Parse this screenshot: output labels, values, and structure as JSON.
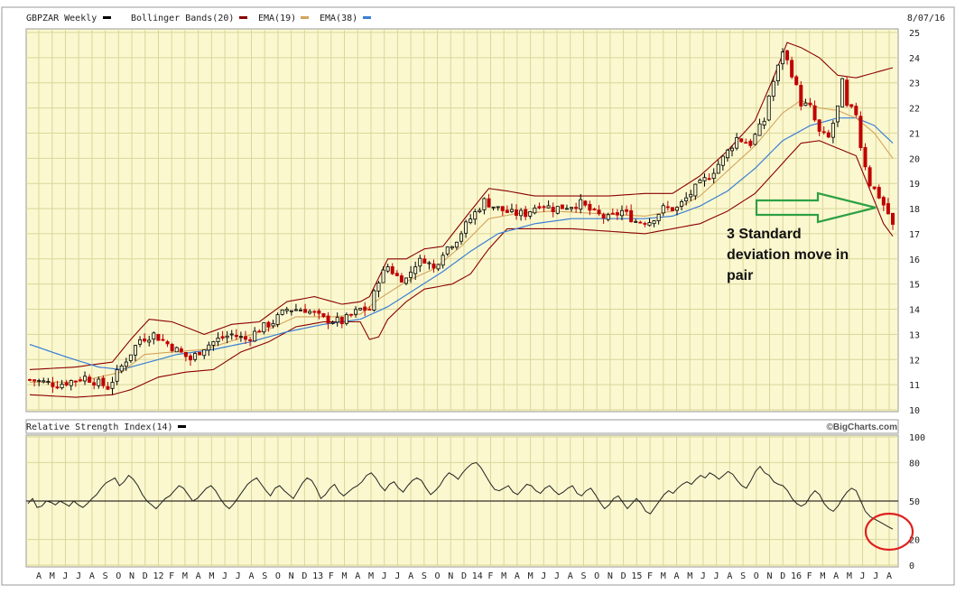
{
  "header": {
    "symbol": "GBPZAR Weekly",
    "indicators": [
      {
        "label": "Bollinger Bands(20)",
        "color": "#8b0000"
      },
      {
        "label": "EMA(19)",
        "color": "#d4a35a"
      },
      {
        "label": "EMA(38)",
        "color": "#3a7fd5"
      }
    ],
    "date": "8/07/16"
  },
  "rsi_panel": {
    "label": "Relative Strength Index(14)",
    "credit": "©BigCharts.com"
  },
  "annotation": {
    "lines": [
      "3 Standard",
      "deviation move in",
      "pair"
    ]
  },
  "colors": {
    "panel_bg": "#fbf8d0",
    "grid": "#d9d69a",
    "candle_up": "#000000",
    "candle_down": "#c00000",
    "bollinger": "#8b0000",
    "ema19": "#d4a35a",
    "ema38": "#3a7fd5",
    "rsi_line": "#222222",
    "arrow": "#2ea043",
    "circle": "#e02020"
  },
  "chart_data": [
    {
      "type": "candlestick",
      "title": "GBPZAR Weekly",
      "y_ticks": [
        10,
        11,
        12,
        13,
        14,
        15,
        16,
        17,
        18,
        19,
        20,
        21,
        22,
        23,
        24,
        25
      ],
      "ylim": [
        10,
        25
      ],
      "x_ticks": [
        "A",
        "M",
        "J",
        "J",
        "A",
        "S",
        "O",
        "N",
        "D",
        "12",
        "F",
        "M",
        "A",
        "M",
        "J",
        "J",
        "A",
        "S",
        "O",
        "N",
        "D",
        "13",
        "F",
        "M",
        "A",
        "M",
        "J",
        "J",
        "A",
        "S",
        "O",
        "N",
        "D",
        "14",
        "F",
        "M",
        "A",
        "M",
        "J",
        "J",
        "A",
        "S",
        "O",
        "N",
        "D",
        "15",
        "F",
        "M",
        "A",
        "M",
        "J",
        "J",
        "A",
        "S",
        "O",
        "N",
        "D",
        "16",
        "F",
        "M",
        "A",
        "M",
        "J",
        "J",
        "A"
      ],
      "close_path": [
        [
          0,
          11.2
        ],
        [
          6,
          11.0
        ],
        [
          12,
          11.3
        ],
        [
          17,
          10.9
        ],
        [
          21,
          12.0
        ],
        [
          24,
          12.8
        ],
        [
          27,
          13.0
        ],
        [
          31,
          12.5
        ],
        [
          35,
          12.0
        ],
        [
          38,
          12.5
        ],
        [
          41,
          12.8
        ],
        [
          44,
          13.0
        ],
        [
          47,
          12.8
        ],
        [
          50,
          13.2
        ],
        [
          53,
          13.5
        ],
        [
          56,
          14.0
        ],
        [
          60,
          14.0
        ],
        [
          64,
          13.6
        ],
        [
          68,
          13.5
        ],
        [
          72,
          14.0
        ],
        [
          74,
          14.0
        ],
        [
          76,
          15.2
        ],
        [
          78,
          15.7
        ],
        [
          80,
          15.3
        ],
        [
          82,
          15.2
        ],
        [
          84,
          15.8
        ],
        [
          86,
          16.0
        ],
        [
          88,
          15.6
        ],
        [
          90,
          16.3
        ],
        [
          93,
          16.8
        ],
        [
          96,
          17.6
        ],
        [
          99,
          18.3
        ],
        [
          102,
          18.0
        ],
        [
          105,
          17.8
        ],
        [
          108,
          17.8
        ],
        [
          111,
          18.2
        ],
        [
          114,
          18.0
        ],
        [
          117,
          18.1
        ],
        [
          120,
          18.2
        ],
        [
          123,
          17.8
        ],
        [
          126,
          17.6
        ],
        [
          129,
          17.9
        ],
        [
          132,
          17.5
        ],
        [
          135,
          17.5
        ],
        [
          138,
          18.0
        ],
        [
          141,
          18.0
        ],
        [
          143,
          18.4
        ],
        [
          145,
          18.8
        ],
        [
          148,
          19.3
        ],
        [
          151,
          20.0
        ],
        [
          154,
          20.8
        ],
        [
          157,
          20.6
        ],
        [
          160,
          21.5
        ],
        [
          161,
          22.5
        ],
        [
          163,
          23.6
        ],
        [
          164,
          24.3
        ],
        [
          166,
          23.4
        ],
        [
          168,
          22.2
        ],
        [
          170,
          22.0
        ],
        [
          172,
          21.0
        ],
        [
          174,
          20.8
        ],
        [
          176,
          22.0
        ],
        [
          177,
          23.0
        ],
        [
          178,
          22.0
        ],
        [
          180,
          21.8
        ],
        [
          181,
          20.5
        ],
        [
          183,
          19.0
        ],
        [
          185,
          18.5
        ],
        [
          187,
          17.8
        ],
        [
          188,
          17.3
        ]
      ],
      "ema19_path": [
        [
          0,
          11.1
        ],
        [
          10,
          11.1
        ],
        [
          20,
          11.5
        ],
        [
          25,
          12.2
        ],
        [
          31,
          12.3
        ],
        [
          38,
          12.4
        ],
        [
          45,
          12.8
        ],
        [
          52,
          13.2
        ],
        [
          58,
          13.7
        ],
        [
          66,
          13.7
        ],
        [
          72,
          13.8
        ],
        [
          76,
          14.4
        ],
        [
          82,
          15.1
        ],
        [
          88,
          15.6
        ],
        [
          94,
          16.5
        ],
        [
          100,
          17.6
        ],
        [
          106,
          17.8
        ],
        [
          114,
          17.9
        ],
        [
          124,
          17.8
        ],
        [
          134,
          17.7
        ],
        [
          140,
          17.9
        ],
        [
          146,
          18.5
        ],
        [
          152,
          19.5
        ],
        [
          158,
          20.5
        ],
        [
          164,
          21.8
        ],
        [
          168,
          22.3
        ],
        [
          172,
          22.0
        ],
        [
          176,
          21.9
        ],
        [
          180,
          21.6
        ],
        [
          184,
          21.0
        ],
        [
          188,
          20.0
        ]
      ],
      "ema38_path": [
        [
          0,
          12.6
        ],
        [
          8,
          12.1
        ],
        [
          15,
          11.7
        ],
        [
          20,
          11.6
        ],
        [
          26,
          11.9
        ],
        [
          32,
          12.2
        ],
        [
          40,
          12.4
        ],
        [
          48,
          12.7
        ],
        [
          56,
          13.1
        ],
        [
          64,
          13.4
        ],
        [
          72,
          13.6
        ],
        [
          78,
          14.1
        ],
        [
          84,
          14.8
        ],
        [
          90,
          15.5
        ],
        [
          96,
          16.3
        ],
        [
          102,
          17.0
        ],
        [
          110,
          17.4
        ],
        [
          118,
          17.6
        ],
        [
          126,
          17.6
        ],
        [
          134,
          17.6
        ],
        [
          140,
          17.7
        ],
        [
          146,
          18.1
        ],
        [
          152,
          18.7
        ],
        [
          158,
          19.6
        ],
        [
          164,
          20.7
        ],
        [
          170,
          21.3
        ],
        [
          176,
          21.6
        ],
        [
          180,
          21.6
        ],
        [
          184,
          21.3
        ],
        [
          188,
          20.6
        ]
      ],
      "bb_upper_path": [
        [
          0,
          11.6
        ],
        [
          10,
          11.7
        ],
        [
          18,
          11.9
        ],
        [
          22,
          12.8
        ],
        [
          26,
          13.6
        ],
        [
          31,
          13.5
        ],
        [
          38,
          13.0
        ],
        [
          44,
          13.4
        ],
        [
          50,
          13.5
        ],
        [
          56,
          14.3
        ],
        [
          62,
          14.5
        ],
        [
          68,
          14.2
        ],
        [
          72,
          14.3
        ],
        [
          74,
          14.5
        ],
        [
          78,
          16.0
        ],
        [
          82,
          16.0
        ],
        [
          86,
          16.4
        ],
        [
          90,
          16.5
        ],
        [
          96,
          17.9
        ],
        [
          100,
          18.8
        ],
        [
          104,
          18.7
        ],
        [
          110,
          18.5
        ],
        [
          118,
          18.5
        ],
        [
          126,
          18.5
        ],
        [
          134,
          18.6
        ],
        [
          140,
          18.6
        ],
        [
          146,
          19.3
        ],
        [
          152,
          20.3
        ],
        [
          158,
          21.5
        ],
        [
          162,
          23.2
        ],
        [
          165,
          24.6
        ],
        [
          168,
          24.4
        ],
        [
          172,
          24.0
        ],
        [
          176,
          23.3
        ],
        [
          180,
          23.2
        ],
        [
          184,
          23.4
        ],
        [
          188,
          23.6
        ]
      ],
      "bb_lower_path": [
        [
          0,
          10.6
        ],
        [
          10,
          10.5
        ],
        [
          18,
          10.6
        ],
        [
          22,
          10.8
        ],
        [
          28,
          11.3
        ],
        [
          34,
          11.5
        ],
        [
          40,
          11.6
        ],
        [
          46,
          12.3
        ],
        [
          52,
          12.7
        ],
        [
          58,
          13.3
        ],
        [
          64,
          13.5
        ],
        [
          68,
          13.5
        ],
        [
          72,
          13.5
        ],
        [
          74,
          12.8
        ],
        [
          76,
          12.9
        ],
        [
          78,
          13.6
        ],
        [
          82,
          14.3
        ],
        [
          86,
          14.8
        ],
        [
          92,
          15.0
        ],
        [
          96,
          15.4
        ],
        [
          100,
          16.4
        ],
        [
          104,
          17.2
        ],
        [
          110,
          17.2
        ],
        [
          118,
          17.2
        ],
        [
          126,
          17.1
        ],
        [
          134,
          17.0
        ],
        [
          140,
          17.2
        ],
        [
          146,
          17.4
        ],
        [
          152,
          17.9
        ],
        [
          158,
          18.6
        ],
        [
          162,
          19.4
        ],
        [
          165,
          20.0
        ],
        [
          168,
          20.6
        ],
        [
          172,
          20.7
        ],
        [
          176,
          20.4
        ],
        [
          180,
          20.1
        ],
        [
          184,
          18.3
        ],
        [
          186,
          17.4
        ],
        [
          188,
          16.9
        ]
      ],
      "annotations": [
        "3 Standard deviation move in pair"
      ]
    },
    {
      "type": "line",
      "title": "Relative Strength Index(14)",
      "y_ticks": [
        0,
        20,
        50,
        80,
        100
      ],
      "ylim": [
        0,
        100
      ],
      "reference_line": 50,
      "series": [
        {
          "values": [
            48,
            52,
            45,
            46,
            50,
            49,
            47,
            50,
            48,
            46,
            50,
            47,
            45,
            48,
            52,
            55,
            60,
            64,
            66,
            68,
            62,
            65,
            70,
            67,
            62,
            55,
            50,
            47,
            44,
            48,
            52,
            54,
            58,
            62,
            60,
            55,
            50,
            52,
            56,
            60,
            62,
            58,
            52,
            47,
            44,
            48,
            53,
            58,
            63,
            66,
            68,
            63,
            58,
            54,
            60,
            62,
            58,
            55,
            52,
            58,
            64,
            68,
            66,
            60,
            52,
            55,
            60,
            63,
            57,
            54,
            57,
            60,
            62,
            65,
            70,
            72,
            68,
            62,
            58,
            63,
            65,
            60,
            57,
            62,
            66,
            68,
            66,
            60,
            55,
            58,
            62,
            68,
            72,
            70,
            67,
            72,
            76,
            79,
            80,
            76,
            70,
            64,
            59,
            58,
            60,
            62,
            57,
            55,
            59,
            63,
            62,
            58,
            56,
            60,
            62,
            58,
            55,
            57,
            60,
            62,
            56,
            54,
            58,
            60,
            55,
            49,
            44,
            47,
            52,
            54,
            49,
            44,
            48,
            52,
            48,
            42,
            40,
            45,
            50,
            55,
            58,
            56,
            60,
            63,
            65,
            63,
            67,
            70,
            68,
            72,
            70,
            67,
            70,
            73,
            71,
            66,
            62,
            60,
            66,
            73,
            77,
            72,
            70,
            65,
            63,
            62,
            58,
            52,
            48,
            46,
            48,
            54,
            58,
            55,
            48,
            44,
            42,
            46,
            52,
            57,
            60,
            58,
            50,
            42,
            38,
            36,
            34,
            32,
            30,
            28
          ]
        }
      ]
    }
  ]
}
